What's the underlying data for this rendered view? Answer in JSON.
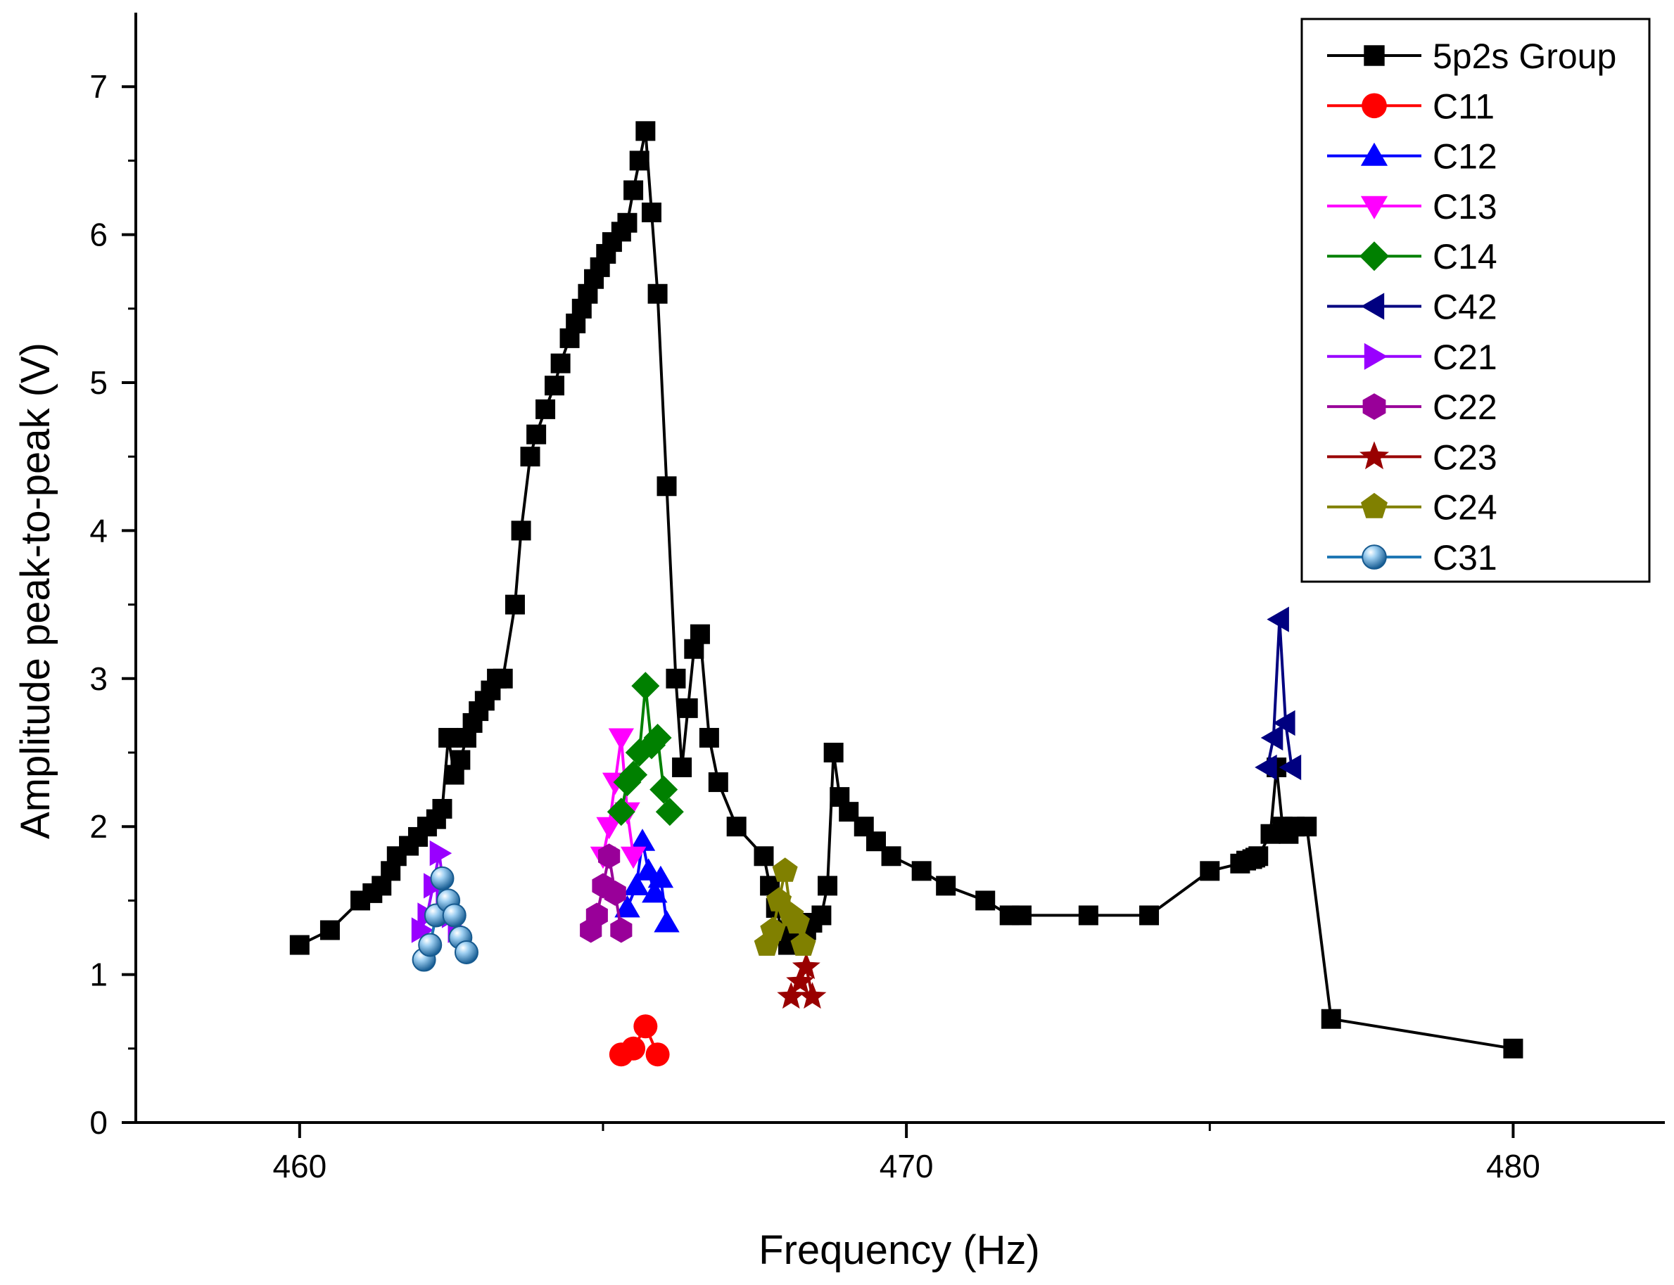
{
  "chart_data": {
    "type": "line",
    "title": "",
    "xlabel": "Frequency (Hz)",
    "ylabel": "Amplitude peak-to-peak (V)",
    "xlim": [
      457.3,
      482.5
    ],
    "ylim": [
      0,
      7.5
    ],
    "xticks": [
      460,
      470,
      480
    ],
    "xticks_minor": [
      465,
      475
    ],
    "yticks": [
      0,
      1,
      2,
      3,
      4,
      5,
      6,
      7
    ],
    "legend_position": "top-right",
    "grid": false,
    "series": [
      {
        "name": "5p2s Group",
        "color": "#000000",
        "marker": "square",
        "x": [
          460,
          460.5,
          461,
          461.2,
          461.35,
          461.5,
          461.6,
          461.8,
          461.95,
          462.1,
          462.25,
          462.35,
          462.45,
          462.55,
          462.65,
          462.75,
          462.85,
          462.95,
          463.05,
          463.15,
          463.25,
          463.35,
          463.55,
          463.65,
          463.8,
          463.9,
          464.05,
          464.2,
          464.3,
          464.45,
          464.55,
          464.65,
          464.75,
          464.85,
          464.95,
          465.05,
          465.15,
          465.3,
          465.4,
          465.5,
          465.6,
          465.7,
          465.8,
          465.9,
          466.05,
          466.2,
          466.3,
          466.4,
          466.5,
          466.6,
          466.75,
          466.9,
          467.2,
          467.65,
          467.75,
          467.85,
          467.95,
          468.05,
          468.15,
          468.25,
          468.35,
          468.45,
          468.6,
          468.7,
          468.8,
          468.9,
          469.05,
          469.3,
          469.5,
          469.75,
          470.25,
          470.65,
          471.3,
          471.7,
          471.9,
          473,
          474,
          475,
          475.5,
          475.6,
          475.7,
          475.75,
          475.8,
          476,
          476.1,
          476.2,
          476.3,
          476.4,
          476.6,
          477,
          480
        ],
        "y": [
          1.2,
          1.3,
          1.5,
          1.55,
          1.6,
          1.7,
          1.8,
          1.87,
          1.93,
          2.0,
          2.05,
          2.12,
          2.6,
          2.35,
          2.45,
          2.6,
          2.7,
          2.78,
          2.85,
          2.92,
          3.0,
          3.0,
          3.5,
          4.0,
          4.5,
          4.65,
          4.82,
          4.98,
          5.13,
          5.3,
          5.4,
          5.5,
          5.6,
          5.7,
          5.78,
          5.87,
          5.95,
          6.02,
          6.08,
          6.3,
          6.5,
          6.7,
          6.15,
          5.6,
          4.3,
          3.0,
          2.4,
          2.8,
          3.2,
          3.3,
          2.6,
          2.3,
          2.0,
          1.8,
          1.6,
          1.45,
          1.3,
          1.2,
          1.22,
          1.25,
          1.3,
          1.35,
          1.4,
          1.6,
          2.5,
          2.2,
          2.1,
          2.0,
          1.9,
          1.8,
          1.7,
          1.6,
          1.5,
          1.4,
          1.4,
          1.4,
          1.4,
          1.7,
          1.75,
          1.77,
          1.78,
          1.79,
          1.8,
          1.95,
          2.4,
          2.0,
          1.95,
          2.0,
          2.0,
          0.7,
          0.5
        ]
      },
      {
        "name": "C11",
        "color": "#ff0000",
        "marker": "circle",
        "x": [
          465.3,
          465.5,
          465.7,
          465.9
        ],
        "y": [
          0.46,
          0.5,
          0.65,
          0.46
        ]
      },
      {
        "name": "C12",
        "color": "#0000ff",
        "marker": "triangle-up",
        "x": [
          465.4,
          465.55,
          465.65,
          465.75,
          465.85,
          465.95,
          466.05
        ],
        "y": [
          1.45,
          1.6,
          1.9,
          1.7,
          1.55,
          1.65,
          1.35
        ]
      },
      {
        "name": "C13",
        "color": "#ff00ff",
        "marker": "triangle-down",
        "x": [
          465.0,
          465.1,
          465.2,
          465.3,
          465.4,
          465.5
        ],
        "y": [
          1.8,
          2.0,
          2.3,
          2.6,
          2.1,
          1.8
        ]
      },
      {
        "name": "C14",
        "color": "#008000",
        "marker": "diamond",
        "x": [
          465.3,
          465.4,
          465.5,
          465.6,
          465.7,
          465.8,
          465.9,
          466.0,
          466.1
        ],
        "y": [
          2.1,
          2.3,
          2.35,
          2.5,
          2.95,
          2.55,
          2.6,
          2.25,
          2.1
        ]
      },
      {
        "name": "C42",
        "color": "#000080",
        "marker": "triangle-left",
        "x": [
          475.95,
          476.05,
          476.15,
          476.25,
          476.35
        ],
        "y": [
          2.4,
          2.6,
          3.4,
          2.7,
          2.4
        ]
      },
      {
        "name": "C21",
        "color": "#9900ff",
        "marker": "triangle-right",
        "x": [
          462.0,
          462.1,
          462.2,
          462.3,
          462.4,
          462.5,
          462.6
        ],
        "y": [
          1.3,
          1.4,
          1.6,
          1.82,
          1.5,
          1.4,
          1.3
        ]
      },
      {
        "name": "C22",
        "color": "#990099",
        "marker": "hexagon",
        "x": [
          464.8,
          464.9,
          465.0,
          465.1,
          465.2,
          465.3
        ],
        "y": [
          1.3,
          1.4,
          1.6,
          1.8,
          1.55,
          1.3
        ]
      },
      {
        "name": "C23",
        "color": "#990000",
        "marker": "star",
        "x": [
          468.1,
          468.25,
          468.35,
          468.45
        ],
        "y": [
          0.85,
          0.95,
          1.05,
          0.85
        ]
      },
      {
        "name": "C24",
        "color": "#808000",
        "marker": "pentagon",
        "x": [
          467.7,
          467.8,
          467.9,
          468.0,
          468.1,
          468.2,
          468.3
        ],
        "y": [
          1.2,
          1.3,
          1.5,
          1.7,
          1.4,
          1.35,
          1.2
        ]
      },
      {
        "name": "C31",
        "color": "#1f77b4",
        "marker": "sphere",
        "x": [
          462.05,
          462.15,
          462.25,
          462.35,
          462.45,
          462.55,
          462.65,
          462.75
        ],
        "y": [
          1.1,
          1.2,
          1.4,
          1.65,
          1.5,
          1.4,
          1.25,
          1.15
        ]
      }
    ]
  }
}
